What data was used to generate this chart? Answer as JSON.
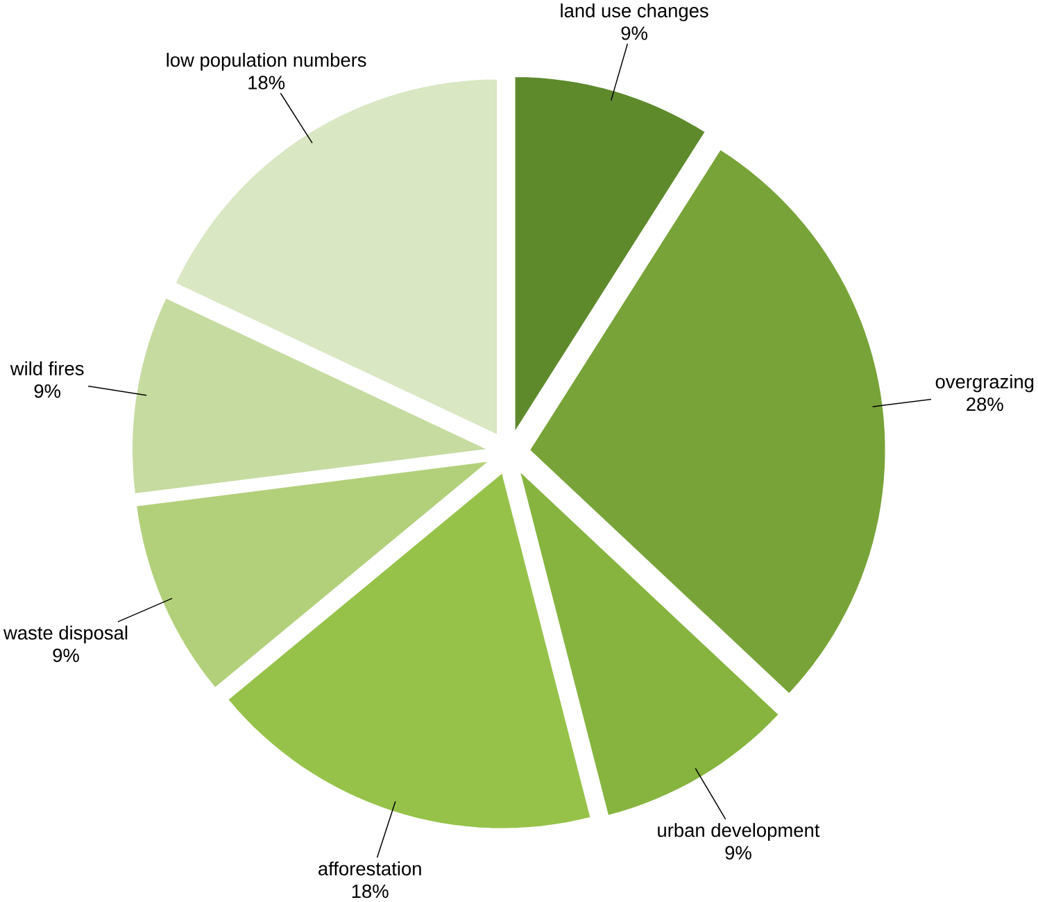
{
  "chart_data": {
    "type": "pie",
    "categories": [
      "land use changes",
      "overgrazing",
      "urban development",
      "afforestation",
      "waste disposal",
      "wild fires",
      "low population numbers"
    ],
    "values": [
      9,
      28,
      9,
      18,
      9,
      9,
      18
    ],
    "value_labels": [
      "9%",
      "28%",
      "9%",
      "18%",
      "9%",
      "9%",
      "18%"
    ],
    "colors": [
      "#5e8a2c",
      "#78a338",
      "#86b43f",
      "#96c24a",
      "#b2d07a",
      "#c6dba0",
      "#d9e7c2"
    ]
  }
}
